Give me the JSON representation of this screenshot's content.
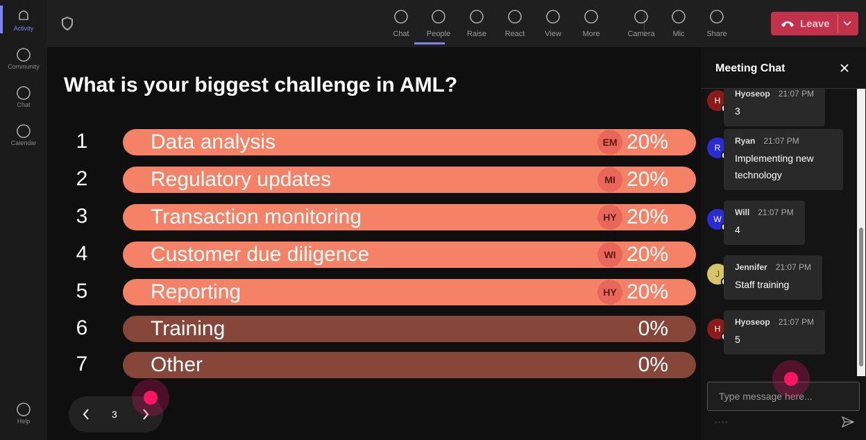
{
  "sidebar": {
    "items": [
      "Activity",
      "Community",
      "Chat",
      "Calendar"
    ],
    "help": "Help"
  },
  "toolbar": {
    "buttons": [
      "Chat",
      "People",
      "Raise",
      "React",
      "View",
      "More",
      "Camera",
      "Mic",
      "Share"
    ],
    "leave": "Leave"
  },
  "poll": {
    "question": "What is your biggest challenge in AML?",
    "options": [
      {
        "number": "1",
        "label": "Data analysis",
        "voter": "EM",
        "percent": "20%"
      },
      {
        "number": "2",
        "label": "Regulatory updates",
        "voter": "MI",
        "percent": "20%"
      },
      {
        "number": "3",
        "label": "Transaction monitoring",
        "voter": "HY",
        "percent": "20%"
      },
      {
        "number": "4",
        "label": "Customer due diligence",
        "voter": "WI",
        "percent": "20%"
      },
      {
        "number": "5",
        "label": "Reporting",
        "voter": "HY",
        "percent": "20%"
      },
      {
        "number": "6",
        "label": "Training",
        "percent": "0%"
      },
      {
        "number": "7",
        "label": "Other",
        "percent": "0%"
      }
    ]
  },
  "pager": {
    "page": "3"
  },
  "chat": {
    "title": "Meeting Chat",
    "messages": [
      {
        "initial": "H",
        "color": "#8b1a1a",
        "author": "Hyoseop",
        "time": "21:07 PM",
        "text": "3"
      },
      {
        "initial": "R",
        "color": "#2b2bd6",
        "author": "Ryan",
        "time": "21:07 PM",
        "text": "Implementing new technology"
      },
      {
        "initial": "W",
        "color": "#2b2bd6",
        "author": "Will",
        "time": "21:07 PM",
        "text": "4"
      },
      {
        "initial": "J",
        "color": "#d8c46a",
        "author": "Jennifer",
        "time": "21:07 PM",
        "text": "Staff training"
      },
      {
        "initial": "H",
        "color": "#8b1a1a",
        "author": "Hyoseop",
        "time": "21:07 PM",
        "text": "5"
      }
    ],
    "input_placeholder": "Type message here..."
  }
}
